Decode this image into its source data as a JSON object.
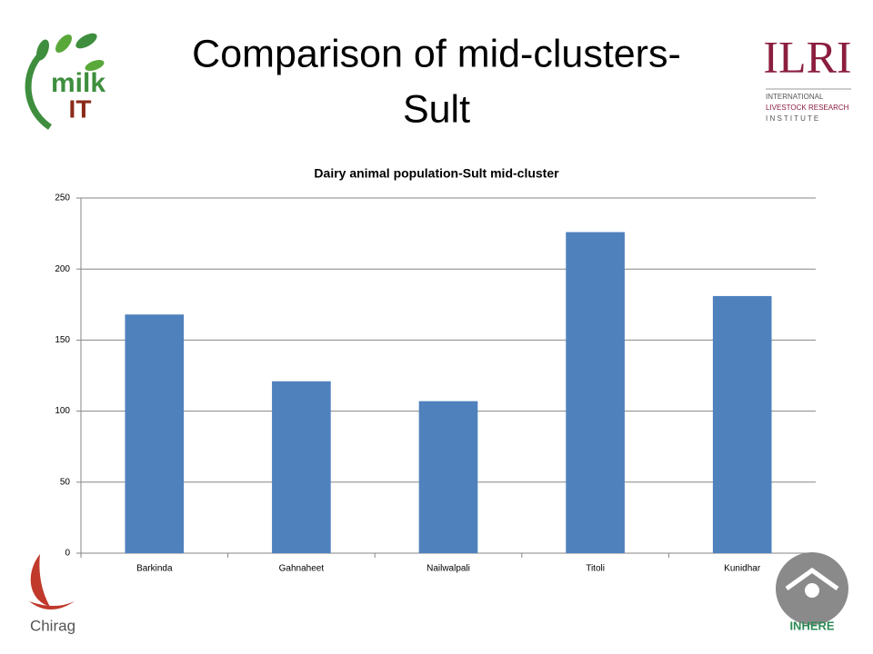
{
  "slide": {
    "title": [
      "Comparison of mid-clusters-",
      "Sult"
    ],
    "logos": {
      "milk": "milk",
      "it": "IT",
      "ilri": "ILRI",
      "ilri_lines": [
        "INTERNATIONAL",
        "LIVESTOCK RESEARCH",
        "I N S T I T U T E"
      ],
      "chirag": "Chirag",
      "inhere": "INHERE"
    }
  },
  "chart_data": {
    "type": "bar",
    "title": "Dairy animal population-Sult mid-cluster",
    "categories": [
      "Barkinda",
      "Gahnaheet",
      "Nailwalpali",
      "Titoli",
      "Kunidhar"
    ],
    "values": [
      168,
      121,
      107,
      226,
      181
    ],
    "color": "#4f81bd",
    "ylim": [
      0,
      250
    ],
    "yticks": [
      0,
      50,
      100,
      150,
      200,
      250
    ],
    "grid": true
  }
}
